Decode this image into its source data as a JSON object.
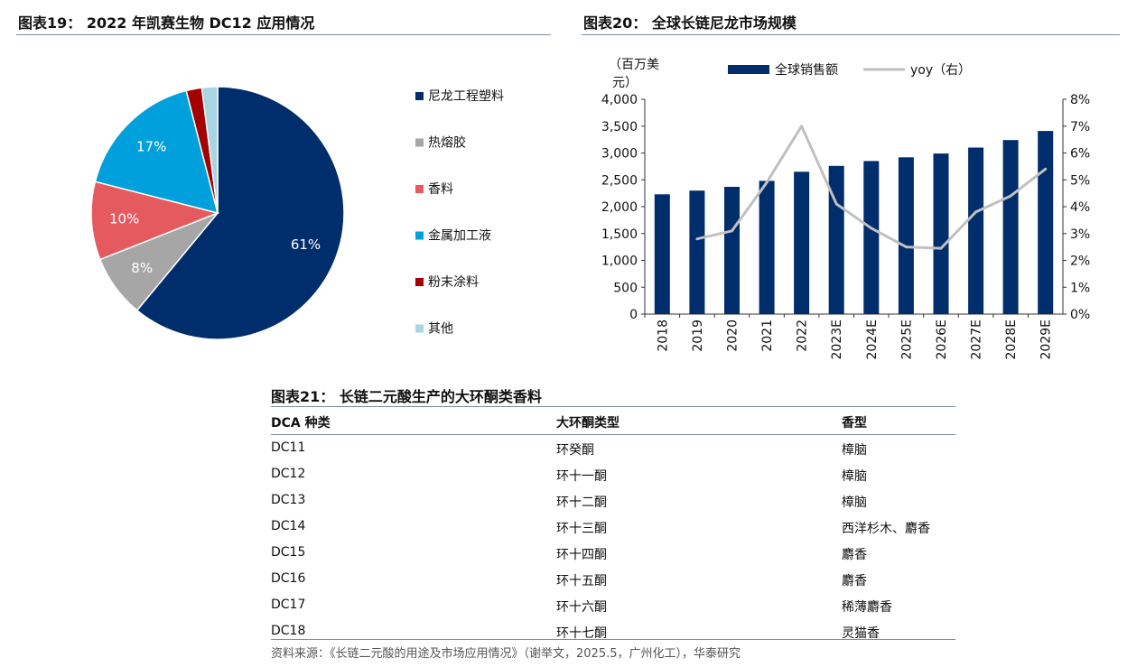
{
  "fig19": {
    "title": "图表19： 2022 年凯赛生物 DC12 应用情况",
    "chart_data": {
      "type": "pie",
      "title": "图表19： 2022 年凯赛生物 DC12 应用情况",
      "slices": [
        {
          "name": "尼龙工程塑料",
          "value": 61,
          "label": "61%",
          "color": "#002d6b"
        },
        {
          "name": "热熔胶",
          "value": 8,
          "label": "8%",
          "color": "#a6a6a6"
        },
        {
          "name": "香料",
          "value": 10,
          "label": "10%",
          "color": "#e55a5e"
        },
        {
          "name": "金属加工液",
          "value": 17,
          "label": "17%",
          "color": "#00a0dc"
        },
        {
          "name": "粉末涂料",
          "value": 2,
          "label": "",
          "color": "#a40000"
        },
        {
          "name": "其他",
          "value": 2,
          "label": "",
          "color": "#a9d4e2"
        }
      ],
      "legend_position": "right"
    }
  },
  "fig20": {
    "title": "图表20： 全球长链尼龙市场规模",
    "chart_data": {
      "type": "bar",
      "title": "图表20： 全球长链尼龙市场规模",
      "ylabel": "（百万美元）",
      "categories": [
        "2018",
        "2019",
        "2020",
        "2021",
        "2022",
        "2023E",
        "2024E",
        "2025E",
        "2026E",
        "2027E",
        "2028E",
        "2029E"
      ],
      "series": [
        {
          "name": "全球销售额",
          "type": "bar",
          "axis": "left",
          "color": "#002d6b",
          "values": [
            2230,
            2300,
            2370,
            2480,
            2650,
            2760,
            2850,
            2920,
            2990,
            3100,
            3240,
            3410
          ]
        },
        {
          "name": "yoy（右）",
          "type": "line",
          "axis": "right",
          "color": "#c0c0c0",
          "values": [
            null,
            2.8,
            3.1,
            4.9,
            7.0,
            4.1,
            3.2,
            2.5,
            2.45,
            3.8,
            4.4,
            5.4
          ]
        }
      ],
      "ylim_left": [
        0,
        4000
      ],
      "ylim_right": [
        0,
        8
      ],
      "yticks_left": [
        "0",
        "500",
        "1,000",
        "1,500",
        "2,000",
        "2,500",
        "3,000",
        "3,500",
        "4,000"
      ],
      "yticks_right": [
        "0%",
        "1%",
        "2%",
        "3%",
        "4%",
        "5%",
        "6%",
        "7%",
        "8%"
      ],
      "legend_position": "top",
      "grid": false
    }
  },
  "fig21": {
    "title": "图表21： 长链二元酸生产的大环酮类香料",
    "headers": [
      "DCA 种类",
      "大环酮类型",
      "香型"
    ],
    "rows": [
      [
        "DC11",
        "环癸酮",
        "樟脑"
      ],
      [
        "DC12",
        "环十一酮",
        "樟脑"
      ],
      [
        "DC13",
        "环十二酮",
        "樟脑"
      ],
      [
        "DC14",
        "环十三酮",
        "西洋杉木、麝香"
      ],
      [
        "DC15",
        "环十四酮",
        "麝香"
      ],
      [
        "DC16",
        "环十五酮",
        "麝香"
      ],
      [
        "DC17",
        "环十六酮",
        "稀薄麝香"
      ],
      [
        "DC18",
        "环十七酮",
        "灵猫香"
      ]
    ],
    "source": "资料来源：《长链二元酸的用途及市场应用情况》（谢举文，2025.5，广州化工），华泰研究"
  }
}
